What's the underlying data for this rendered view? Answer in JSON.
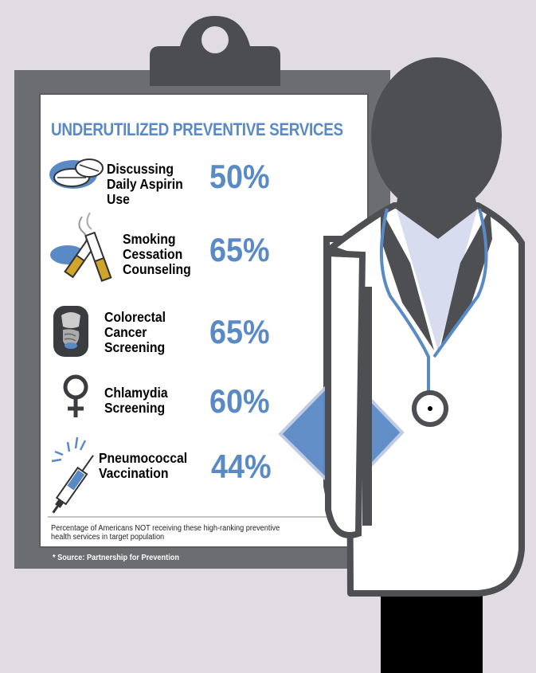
{
  "title": "UNDERUTILIZED PREVENTIVE SERVICES",
  "services": [
    {
      "label": "Discussing\nDaily Aspirin\nUse",
      "percent": "50%",
      "icon": "aspirin-tablets-icon"
    },
    {
      "label": "Smoking\nCessation\nCounseling",
      "percent": "65%",
      "icon": "cigarettes-icon"
    },
    {
      "label": "Colorectal\nCancer\nScreening",
      "percent": "65%",
      "icon": "digestive-system-icon"
    },
    {
      "label": "Chlamydia\nScreening",
      "percent": "60%",
      "icon": "female-symbol-icon"
    },
    {
      "label": "Pneumococcal\nVaccination",
      "percent": "44%",
      "icon": "syringe-icon"
    }
  ],
  "footnote": "Percentage of Americans NOT receiving these high-ranking preventive health services in target population",
  "source": "* Source: Partnership for Prevention",
  "colors": {
    "background": "#e0dce1",
    "clipboard": "#5b5d60",
    "accent": "#5a8ac6",
    "coat": "#ffffff",
    "doctor": "#4d4f52"
  }
}
